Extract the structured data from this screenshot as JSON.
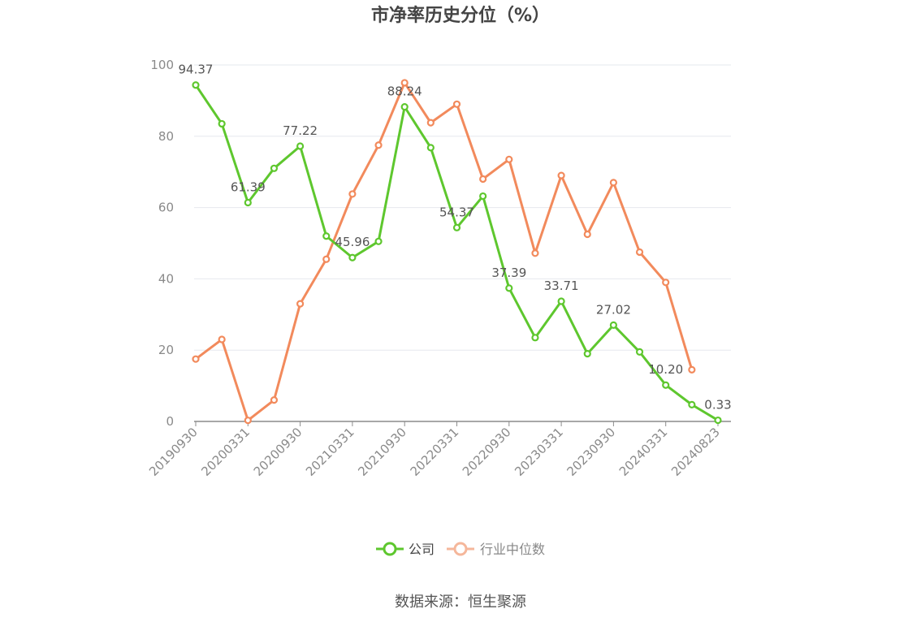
{
  "chart_data": {
    "type": "line",
    "title": "市净率历史分位（%）",
    "source": "数据来源：恒生聚源",
    "ylim": [
      0,
      100
    ],
    "yticks": [
      "0",
      "20",
      "40",
      "60",
      "80",
      "100"
    ],
    "grid": true,
    "legend_position": "bottom",
    "x": [
      "20190930",
      "20191231",
      "20200331",
      "20200630",
      "20200930",
      "20201231",
      "20210331",
      "20210630",
      "20210930",
      "20211231",
      "20220331",
      "20220630",
      "20220930",
      "20221231",
      "20230331",
      "20230630",
      "20230930",
      "20231231",
      "20240331",
      "20240630",
      "20240823"
    ],
    "xticks": [
      "20190930",
      "20200331",
      "20200930",
      "20210331",
      "20210930",
      "20220331",
      "20220930",
      "20230331",
      "20230930",
      "20240331",
      "20240823"
    ],
    "series": [
      {
        "name": "公司",
        "color": "#5ec72e",
        "values": [
          94.37,
          83.5,
          61.39,
          71.0,
          77.22,
          52.0,
          45.96,
          50.5,
          88.24,
          76.8,
          54.37,
          63.2,
          37.39,
          23.5,
          33.71,
          19.0,
          27.02,
          19.5,
          10.2,
          4.7,
          0.33
        ],
        "labels": [
          "94.37",
          null,
          "61.39",
          null,
          "77.22",
          null,
          "45.96",
          null,
          "88.24",
          null,
          "54.37",
          null,
          "37.39",
          null,
          "33.71",
          null,
          "27.02",
          null,
          "10.20",
          null,
          "0.33"
        ]
      },
      {
        "name": "行业中位数",
        "color": "#f28a5c",
        "values": [
          17.5,
          23.0,
          0.3,
          6.0,
          33.0,
          45.5,
          63.8,
          77.5,
          95.0,
          83.8,
          89.0,
          68.0,
          73.5,
          47.2,
          69.0,
          52.5,
          67.0,
          47.5,
          39.0,
          14.5,
          null
        ]
      }
    ]
  },
  "legend": {
    "items": [
      {
        "label": "公司",
        "color": "#5ec72e",
        "active": true
      },
      {
        "label": "行业中位数",
        "color": "#f5b79b",
        "active": false
      }
    ]
  }
}
